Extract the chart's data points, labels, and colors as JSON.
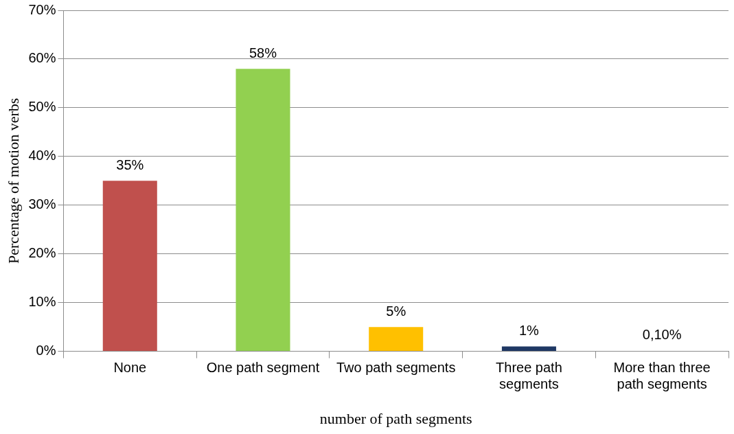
{
  "chart_data": {
    "type": "bar",
    "xlabel": "number of path segments",
    "ylabel": "Percentage of motion verbs",
    "categories": [
      "None",
      "One path segment",
      "Two path segments",
      "Three path segments",
      "More than three path segments"
    ],
    "values": [
      35,
      58,
      5,
      1,
      0.1
    ],
    "colors": [
      "#c0504d",
      "#92d050",
      "#ffc000",
      "#1f3864",
      "#4f81bd"
    ],
    "value_labels": [
      "35%",
      "58%",
      "5%",
      "1%",
      "0,10%"
    ],
    "ylim": [
      0,
      70
    ],
    "yticks": [
      {
        "value": 0,
        "label": "0%"
      },
      {
        "value": 10,
        "label": "10%"
      },
      {
        "value": 20,
        "label": "20%"
      },
      {
        "value": 30,
        "label": "30%"
      },
      {
        "value": 40,
        "label": "40%"
      },
      {
        "value": 50,
        "label": "50%"
      },
      {
        "value": 60,
        "label": "60%"
      },
      {
        "value": 70,
        "label": "70%"
      }
    ],
    "grid": "y",
    "legend": false
  }
}
